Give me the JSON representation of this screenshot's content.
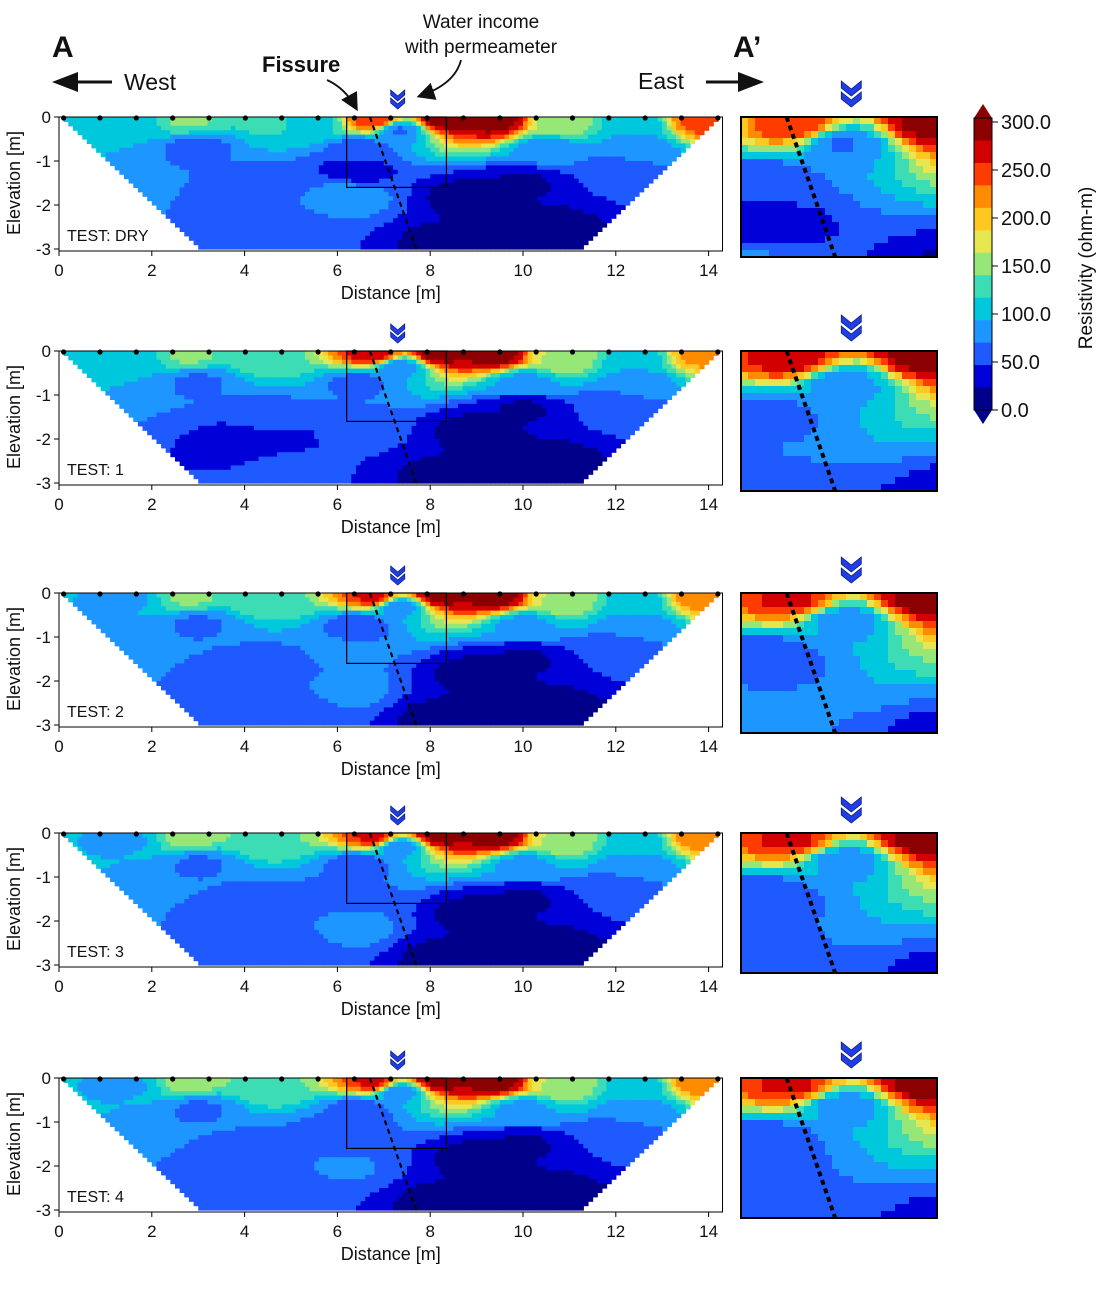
{
  "header": {
    "label_a": "A",
    "label_a_prime": "A’",
    "west": "West",
    "east": "East",
    "fissure": "Fissure",
    "water_line1": "Water income",
    "water_line2": "with permeameter"
  },
  "colors": {
    "scale": [
      "#00008b",
      "#0000d8",
      "#1e5aff",
      "#1e96ff",
      "#00c8dc",
      "#3cdcb4",
      "#96e678",
      "#e6e650",
      "#ffc820",
      "#ff8c00",
      "#ff3c00",
      "#d20000",
      "#8b0000"
    ],
    "marker": "#1f3ee6",
    "frame": "#000000"
  },
  "chart_data": {
    "type": "heatmap",
    "quantity": "Resistivity (ohm-m)",
    "xlabel": "Distance [m]",
    "ylabel": "Elevation [m]",
    "xlim": [
      0,
      14.3
    ],
    "ylim": [
      -3,
      0
    ],
    "xticks": [
      0,
      2,
      4,
      6,
      8,
      10,
      12,
      14
    ],
    "yticks": [
      0,
      -1,
      -2,
      -3
    ],
    "colorbar": {
      "label": "Resistivity (ohm-m)",
      "ticks": [
        "300.0",
        "250.0",
        "200.0",
        "150.0",
        "100.0",
        "50.0",
        "0.0"
      ],
      "range": [
        0,
        300
      ]
    },
    "fissure_line": {
      "x_top": 6.7,
      "x_bottom": 7.7
    },
    "zoom_box": {
      "x": [
        6.2,
        8.35
      ],
      "y": [
        -1.6,
        0
      ]
    },
    "water_inlet_x": 7.3,
    "panels": [
      {
        "test_label": "TEST: DRY",
        "points": [
          [
            1.5,
            -0.15,
            90
          ],
          [
            2.8,
            -0.1,
            140
          ],
          [
            4.5,
            -0.15,
            115
          ],
          [
            5.5,
            -0.15,
            105
          ],
          [
            6.8,
            -0.1,
            260
          ],
          [
            7.3,
            -0.3,
            60
          ],
          [
            8.3,
            -0.05,
            300
          ],
          [
            9.4,
            -0.1,
            300
          ],
          [
            10.8,
            -0.15,
            150
          ],
          [
            12.5,
            -0.2,
            90
          ],
          [
            13.8,
            -0.1,
            250
          ],
          [
            3,
            -0.65,
            55
          ],
          [
            6.5,
            -0.7,
            50
          ],
          [
            10.5,
            -0.7,
            75
          ],
          [
            12.5,
            -0.7,
            70
          ],
          [
            4.5,
            -1.5,
            50
          ],
          [
            6.2,
            -1.8,
            75
          ],
          [
            6.4,
            -1.2,
            25
          ],
          [
            5,
            -2.6,
            50
          ],
          [
            8.8,
            -1.8,
            5
          ],
          [
            10,
            -1.5,
            10
          ],
          [
            10.5,
            -2.5,
            5
          ],
          [
            8.2,
            -2.8,
            10
          ],
          [
            12,
            -1.3,
            40
          ]
        ]
      },
      {
        "test_label": "TEST: 1",
        "points": [
          [
            1.5,
            -0.15,
            90
          ],
          [
            2.8,
            -0.1,
            140
          ],
          [
            4.5,
            -0.15,
            130
          ],
          [
            6.8,
            -0.1,
            280
          ],
          [
            7.3,
            -0.35,
            70
          ],
          [
            8.2,
            -0.05,
            300
          ],
          [
            9.4,
            -0.1,
            300
          ],
          [
            10.8,
            -0.15,
            160
          ],
          [
            12.5,
            -0.2,
            95
          ],
          [
            13.8,
            -0.1,
            220
          ],
          [
            3,
            -0.7,
            60
          ],
          [
            6.5,
            -0.7,
            55
          ],
          [
            10,
            -0.7,
            80
          ],
          [
            12.5,
            -0.7,
            75
          ],
          [
            4.5,
            -1.6,
            45
          ],
          [
            4.4,
            -2,
            15
          ],
          [
            6.5,
            -1.8,
            45
          ],
          [
            5,
            -2.6,
            45
          ],
          [
            9,
            -1.8,
            5
          ],
          [
            10,
            -1.3,
            10
          ],
          [
            10.5,
            -2.5,
            5
          ],
          [
            8.2,
            -2.8,
            10
          ],
          [
            12,
            -1.3,
            40
          ]
        ]
      },
      {
        "test_label": "TEST: 2",
        "points": [
          [
            1.5,
            -0.15,
            85
          ],
          [
            2.8,
            -0.1,
            140
          ],
          [
            4.5,
            -0.15,
            130
          ],
          [
            6.8,
            -0.1,
            270
          ],
          [
            7.3,
            -0.3,
            70
          ],
          [
            8.2,
            -0.05,
            300
          ],
          [
            9.4,
            -0.1,
            300
          ],
          [
            10.8,
            -0.15,
            160
          ],
          [
            12.5,
            -0.2,
            100
          ],
          [
            13.8,
            -0.1,
            230
          ],
          [
            3,
            -0.7,
            60
          ],
          [
            6.5,
            -0.7,
            50
          ],
          [
            10,
            -0.7,
            80
          ],
          [
            12.5,
            -0.7,
            75
          ],
          [
            4.5,
            -1.7,
            45
          ],
          [
            6.2,
            -2.2,
            70
          ],
          [
            6,
            -1.4,
            65
          ],
          [
            5,
            -2.6,
            45
          ],
          [
            9,
            -1.8,
            5
          ],
          [
            10,
            -1.5,
            10
          ],
          [
            10.5,
            -2.6,
            5
          ],
          [
            8.2,
            -2.8,
            8
          ],
          [
            12,
            -1.3,
            40
          ]
        ]
      },
      {
        "test_label": "TEST: 3",
        "points": [
          [
            1.5,
            -0.15,
            85
          ],
          [
            2.8,
            -0.1,
            150
          ],
          [
            4.5,
            -0.15,
            135
          ],
          [
            6.8,
            -0.1,
            270
          ],
          [
            7.3,
            -0.3,
            70
          ],
          [
            8.2,
            -0.05,
            300
          ],
          [
            9.4,
            -0.1,
            300
          ],
          [
            10.8,
            -0.15,
            160
          ],
          [
            12.5,
            -0.2,
            100
          ],
          [
            13.8,
            -0.1,
            230
          ],
          [
            3,
            -0.7,
            60
          ],
          [
            6.5,
            -0.7,
            50
          ],
          [
            10,
            -0.7,
            80
          ],
          [
            12.5,
            -0.7,
            75
          ],
          [
            4.5,
            -1.6,
            45
          ],
          [
            6.3,
            -2.2,
            70
          ],
          [
            6.2,
            -1.4,
            55
          ],
          [
            5,
            -2.6,
            45
          ],
          [
            9,
            -1.8,
            5
          ],
          [
            10,
            -1.5,
            10
          ],
          [
            10.5,
            -2.6,
            5
          ],
          [
            8.2,
            -2.8,
            8
          ],
          [
            12,
            -1.3,
            40
          ]
        ]
      },
      {
        "test_label": "TEST: 4",
        "points": [
          [
            1.5,
            -0.15,
            85
          ],
          [
            2.8,
            -0.1,
            150
          ],
          [
            4.5,
            -0.15,
            135
          ],
          [
            6.8,
            -0.1,
            270
          ],
          [
            7.3,
            -0.3,
            70
          ],
          [
            8.2,
            -0.05,
            300
          ],
          [
            9.4,
            -0.1,
            300
          ],
          [
            10.8,
            -0.15,
            160
          ],
          [
            12.5,
            -0.2,
            100
          ],
          [
            13.8,
            -0.1,
            230
          ],
          [
            3,
            -0.7,
            60
          ],
          [
            6.5,
            -0.7,
            50
          ],
          [
            10,
            -0.7,
            80
          ],
          [
            12.5,
            -0.7,
            75
          ],
          [
            4.5,
            -1.7,
            45
          ],
          [
            6.1,
            -2,
            65
          ],
          [
            6.2,
            -1.3,
            40
          ],
          [
            5,
            -2.6,
            45
          ],
          [
            9,
            -1.8,
            5
          ],
          [
            10,
            -1.5,
            10
          ],
          [
            10.5,
            -2.6,
            5
          ],
          [
            8.2,
            -2.8,
            8
          ],
          [
            12,
            -1.3,
            40
          ]
        ]
      }
    ]
  }
}
